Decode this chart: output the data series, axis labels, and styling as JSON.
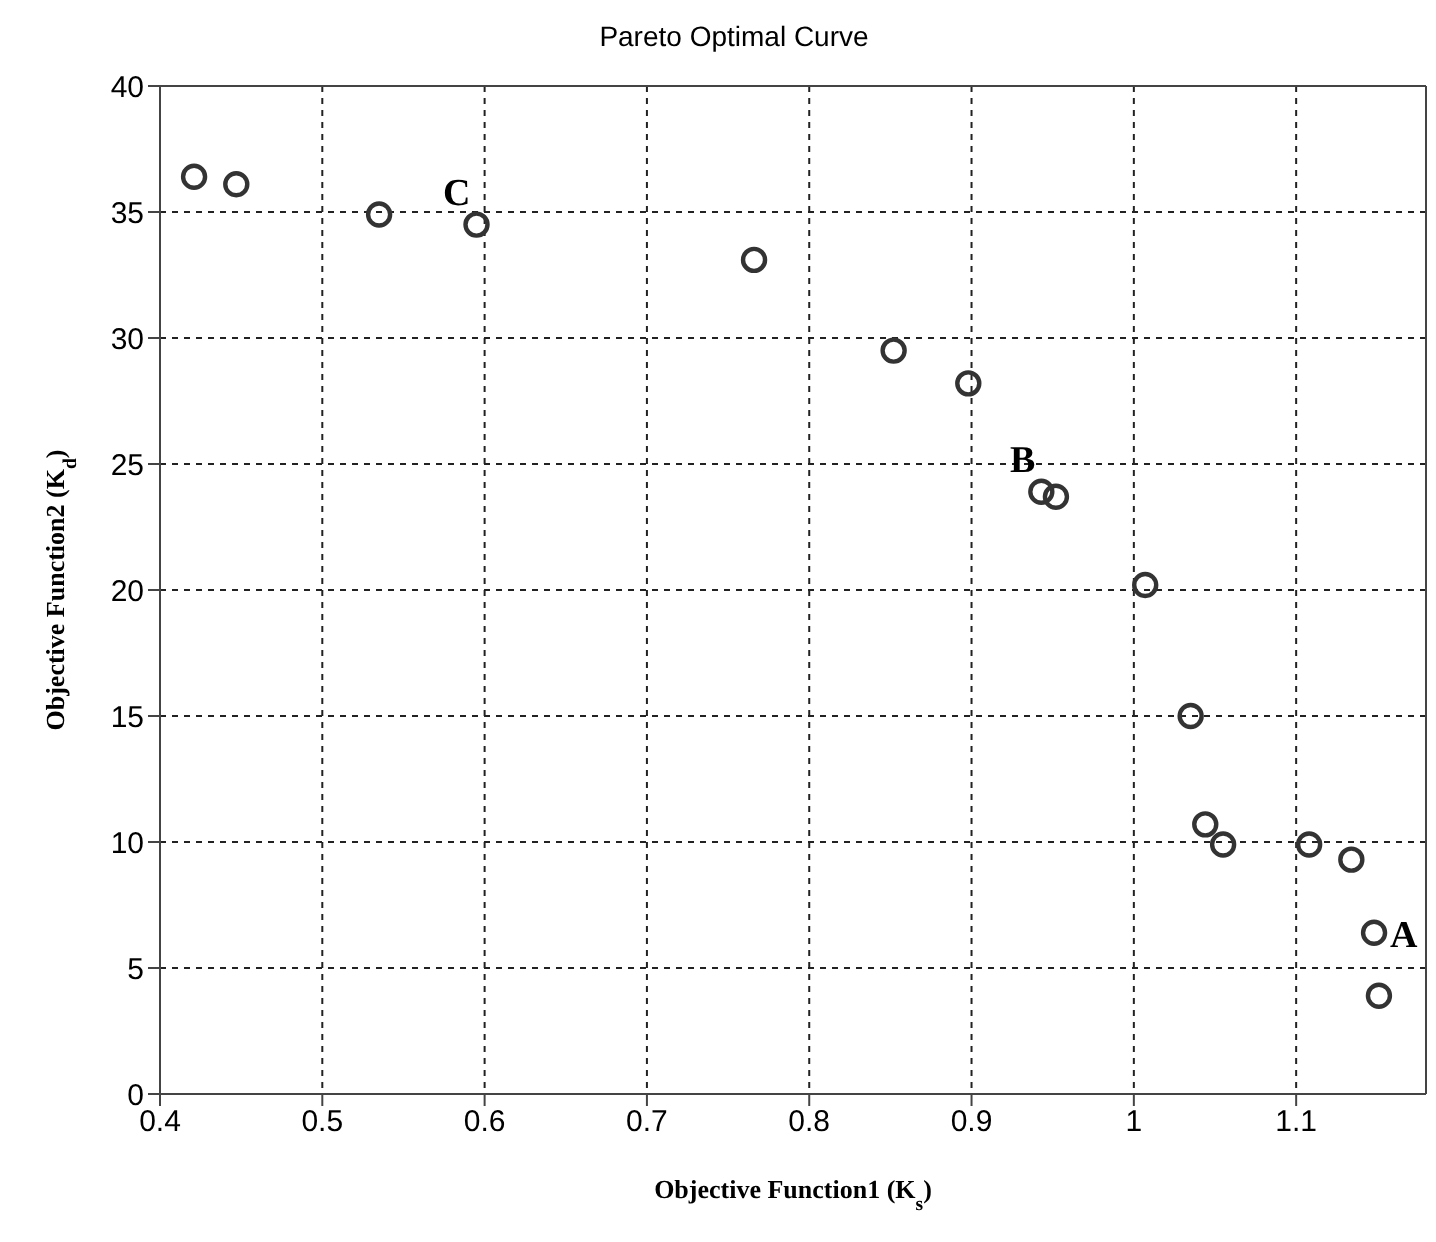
{
  "chart_data": {
    "type": "scatter",
    "title": "Pareto Optimal Curve",
    "xlabel": "Objective Function1 (K$_{s}$)",
    "ylabel": "Objective Function2 (K$_{d}$)",
    "x": [
      0.421,
      0.447,
      0.535,
      0.595,
      0.766,
      0.852,
      0.898,
      0.943,
      0.952,
      1.007,
      1.035,
      1.044,
      1.055,
      1.108,
      1.134,
      1.148,
      1.151
    ],
    "series": [
      {
        "color": "#333333",
        "values": [
          36.4,
          36.1,
          34.9,
          34.5,
          33.1,
          29.5,
          28.2,
          23.9,
          23.7,
          20.2,
          15.0,
          10.7,
          9.9,
          9.9,
          9.3,
          6.4,
          3.9
        ]
      }
    ],
    "marker": "circle",
    "grid": true,
    "xlim": [
      0.4,
      1.18
    ],
    "xticks": [
      0.4,
      0.5,
      0.6,
      0.7,
      0.8,
      0.9,
      1,
      1.1
    ],
    "ylim": [
      0,
      40
    ],
    "yticks": [
      0,
      5,
      10,
      15,
      20,
      25,
      30,
      35,
      40
    ],
    "annotations": [
      {
        "text": "A",
        "x": 1.148,
        "y": 6.4
      },
      {
        "text": "B",
        "x": 0.943,
        "y": 23.9
      },
      {
        "text": "C",
        "x": 0.595,
        "y": 34.5
      }
    ]
  }
}
